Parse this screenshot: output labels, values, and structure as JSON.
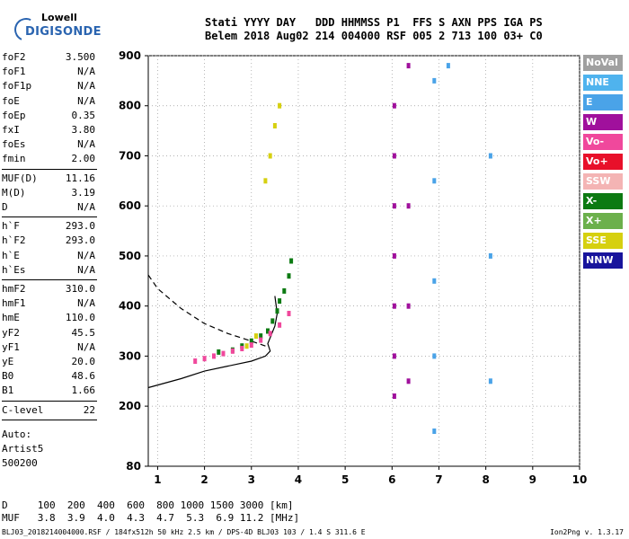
{
  "logo": {
    "line1": "Lowell",
    "line2": "DIGISONDE"
  },
  "header": {
    "line1": "Stati YYYY DAY   DDD HHMMSS P1  FFS S AXN PPS IGA PS",
    "line2": "Belem 2018 Aug02 214 004000 RSF 005 2 713 100 03+ C0"
  },
  "params": [
    {
      "label": "foF2",
      "value": "3.500"
    },
    {
      "label": "foF1",
      "value": "N/A"
    },
    {
      "label": "foF1p",
      "value": "N/A"
    },
    {
      "label": "foE",
      "value": "N/A"
    },
    {
      "label": "foEp",
      "value": "0.35"
    },
    {
      "label": "fxI",
      "value": "3.80"
    },
    {
      "label": "foEs",
      "value": "N/A"
    },
    {
      "label": "fmin",
      "value": "2.00"
    },
    {
      "label": "MUF(D)",
      "value": "11.16"
    },
    {
      "label": "M(D)",
      "value": "3.19"
    },
    {
      "label": "D",
      "value": "N/A"
    },
    {
      "label": "h`F",
      "value": "293.0"
    },
    {
      "label": "h`F2",
      "value": "293.0"
    },
    {
      "label": "h`E",
      "value": "N/A"
    },
    {
      "label": "h`Es",
      "value": "N/A"
    },
    {
      "label": "hmF2",
      "value": "310.0"
    },
    {
      "label": "hmF1",
      "value": "N/A"
    },
    {
      "label": "hmE",
      "value": "110.0"
    },
    {
      "label": "yF2",
      "value": "45.5"
    },
    {
      "label": "yF1",
      "value": "N/A"
    },
    {
      "label": "yE",
      "value": "20.0"
    },
    {
      "label": "B0",
      "value": "48.6"
    },
    {
      "label": "B1",
      "value": "1.66"
    },
    {
      "label": "C-level",
      "value": "22"
    }
  ],
  "autoscaling": {
    "line1": "Auto:",
    "line2": "Artist5",
    "line3": "500200"
  },
  "legend": [
    {
      "label": "NoVal",
      "color": "#a0a0a0"
    },
    {
      "label": "NNE",
      "color": "#4fb3ee"
    },
    {
      "label": "E",
      "color": "#4aa3e8"
    },
    {
      "label": "W",
      "color": "#a0109c"
    },
    {
      "label": "Vo-",
      "color": "#f0489c"
    },
    {
      "label": "Vo+",
      "color": "#e8102a"
    },
    {
      "label": "SSW",
      "color": "#f4b4b4"
    },
    {
      "label": "X-",
      "color": "#0c7a12"
    },
    {
      "label": "X+",
      "color": "#6cb04c"
    },
    {
      "label": "SSE",
      "color": "#d6d010"
    },
    {
      "label": "NNW",
      "color": "#18149c"
    }
  ],
  "footer": {
    "line1": "D     100  200  400  600  800 1000 1500 3000 [km]",
    "line2": "MUF   3.8  3.9  4.0  4.3  4.7  5.3  6.9 11.2 [MHz]"
  },
  "filebar": "BLJ03_2018214004000.RSF / 184fx512h 50 kHz 2.5 km / DPS-4D BLJ03 103 / 1.4 S 311.6 E",
  "version": "Ion2Png v. 1.3.17",
  "chart_data": {
    "type": "scatter",
    "xlim": [
      0.8,
      10
    ],
    "ylim": [
      80,
      900
    ],
    "xticks": [
      1,
      2,
      3,
      4,
      5,
      6,
      7,
      8,
      9,
      10
    ],
    "yticks": [
      80,
      200,
      300,
      400,
      500,
      600,
      700,
      800,
      900
    ],
    "grid": "dotted",
    "legend_position": "right",
    "series": [
      {
        "name": "X-",
        "color": "#0c7a12",
        "points": [
          [
            2.3,
            308
          ],
          [
            2.6,
            312
          ],
          [
            2.8,
            320
          ],
          [
            3.0,
            330
          ],
          [
            3.2,
            340
          ],
          [
            3.35,
            350
          ],
          [
            3.45,
            370
          ],
          [
            3.55,
            390
          ],
          [
            3.6,
            410
          ],
          [
            3.7,
            430
          ],
          [
            3.8,
            460
          ],
          [
            3.85,
            490
          ]
        ]
      },
      {
        "name": "Vo-",
        "color": "#f0489c",
        "points": [
          [
            1.8,
            290
          ],
          [
            2.0,
            295
          ],
          [
            2.2,
            300
          ],
          [
            2.4,
            305
          ],
          [
            2.6,
            310
          ],
          [
            2.8,
            315
          ],
          [
            3.0,
            322
          ],
          [
            3.2,
            332
          ],
          [
            3.4,
            345
          ],
          [
            3.6,
            362
          ],
          [
            3.8,
            385
          ]
        ]
      },
      {
        "name": "W",
        "color": "#a0109c",
        "points": [
          [
            6.05,
            220
          ],
          [
            6.05,
            300
          ],
          [
            6.05,
            400
          ],
          [
            6.05,
            500
          ],
          [
            6.05,
            600
          ],
          [
            6.05,
            700
          ],
          [
            6.05,
            800
          ],
          [
            6.35,
            880
          ],
          [
            6.35,
            600
          ],
          [
            6.35,
            400
          ],
          [
            6.35,
            250
          ]
        ]
      },
      {
        "name": "E",
        "color": "#4aa3e8",
        "points": [
          [
            6.9,
            850
          ],
          [
            6.9,
            650
          ],
          [
            6.9,
            450
          ],
          [
            6.9,
            300
          ],
          [
            6.9,
            150
          ],
          [
            7.2,
            880
          ],
          [
            8.1,
            700
          ],
          [
            8.1,
            500
          ],
          [
            8.1,
            250
          ]
        ]
      },
      {
        "name": "SSE",
        "color": "#d6d010",
        "points": [
          [
            3.3,
            650
          ],
          [
            3.4,
            700
          ],
          [
            3.5,
            760
          ],
          [
            3.6,
            800
          ],
          [
            2.9,
            320
          ],
          [
            3.1,
            340
          ]
        ]
      }
    ],
    "curves": [
      {
        "name": "profile",
        "style": "solid",
        "points": [
          [
            0.8,
            237
          ],
          [
            1.5,
            255
          ],
          [
            2.0,
            270
          ],
          [
            2.5,
            280
          ],
          [
            3.0,
            290
          ],
          [
            3.3,
            300
          ],
          [
            3.4,
            310
          ],
          [
            3.35,
            325
          ],
          [
            3.5,
            360
          ],
          [
            3.55,
            385
          ],
          [
            3.5,
            420
          ]
        ]
      },
      {
        "name": "profile-extrapolated",
        "style": "dashed",
        "points": [
          [
            0.8,
            462
          ],
          [
            1.0,
            435
          ],
          [
            1.5,
            395
          ],
          [
            2.0,
            365
          ],
          [
            2.5,
            345
          ],
          [
            3.0,
            330
          ],
          [
            3.3,
            320
          ]
        ]
      }
    ]
  }
}
